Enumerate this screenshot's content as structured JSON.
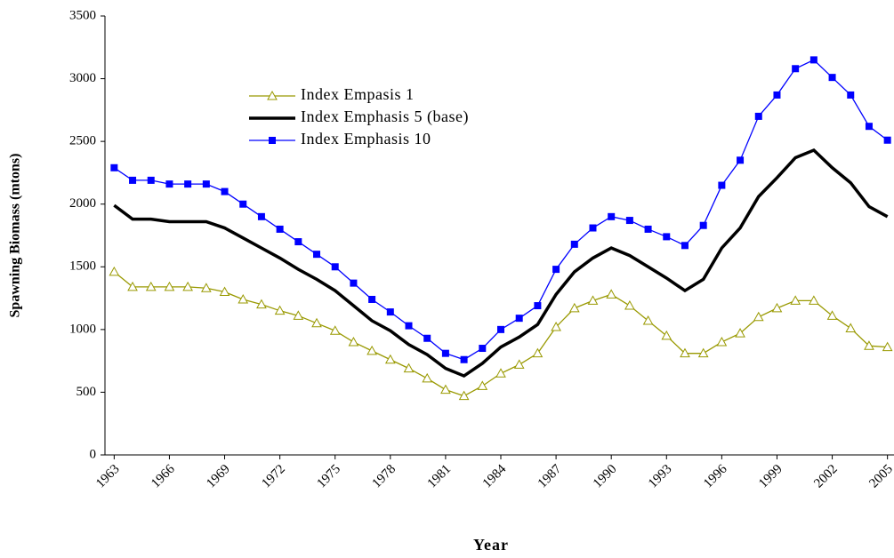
{
  "chart_data": {
    "type": "line",
    "x_label": "Year",
    "y_label": "Spawning Biomass (mtons)",
    "x": [
      1963,
      1964,
      1965,
      1966,
      1967,
      1968,
      1969,
      1970,
      1971,
      1972,
      1973,
      1974,
      1975,
      1976,
      1977,
      1978,
      1979,
      1980,
      1981,
      1982,
      1983,
      1984,
      1985,
      1986,
      1987,
      1988,
      1989,
      1990,
      1991,
      1992,
      1993,
      1994,
      1995,
      1996,
      1997,
      1998,
      1999,
      2000,
      2001,
      2002,
      2003,
      2004,
      2005
    ],
    "xlim": [
      1962.5,
      2005.5
    ],
    "xticks": [
      1963,
      1966,
      1969,
      1972,
      1975,
      1978,
      1981,
      1984,
      1987,
      1990,
      1993,
      1996,
      1999,
      2002,
      2005
    ],
    "ylim": [
      0,
      3500
    ],
    "yticks": [
      0,
      500,
      1000,
      1500,
      2000,
      2500,
      3000,
      3500
    ],
    "legend": "upper left",
    "series": [
      {
        "name": "Index Empasis 1",
        "color": "#999900",
        "marker": "triangle",
        "values": [
          1460,
          1340,
          1340,
          1340,
          1340,
          1330,
          1300,
          1240,
          1200,
          1150,
          1110,
          1050,
          990,
          900,
          830,
          760,
          690,
          610,
          520,
          470,
          550,
          650,
          720,
          810,
          1020,
          1170,
          1230,
          1280,
          1190,
          1070,
          950,
          810,
          810,
          900,
          970,
          1100,
          1170,
          1230,
          1230,
          1110,
          1010,
          870,
          860
        ]
      },
      {
        "name": "Index Emphasis 5 (base)",
        "color": "#000000",
        "marker": "none",
        "values": [
          1990,
          1880,
          1880,
          1860,
          1860,
          1860,
          1810,
          1730,
          1650,
          1570,
          1480,
          1400,
          1310,
          1190,
          1070,
          990,
          880,
          800,
          690,
          630,
          730,
          860,
          940,
          1040,
          1280,
          1460,
          1570,
          1650,
          1590,
          1500,
          1410,
          1310,
          1400,
          1650,
          1810,
          2060,
          2210,
          2370,
          2430,
          2290,
          2170,
          1980,
          1900
        ]
      },
      {
        "name": "Index Emphasis 10",
        "color": "#0000ff",
        "marker": "square",
        "values": [
          2290,
          2190,
          2190,
          2160,
          2160,
          2160,
          2100,
          2000,
          1900,
          1800,
          1700,
          1600,
          1500,
          1370,
          1240,
          1140,
          1030,
          930,
          810,
          760,
          850,
          1000,
          1090,
          1190,
          1480,
          1680,
          1810,
          1900,
          1870,
          1800,
          1740,
          1670,
          1830,
          2150,
          2350,
          2700,
          2870,
          3080,
          3150,
          3010,
          2870,
          2620,
          2510
        ]
      }
    ]
  }
}
